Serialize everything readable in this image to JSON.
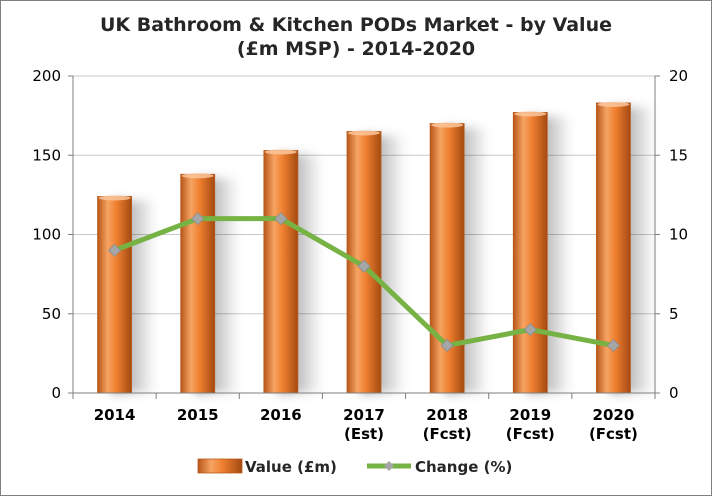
{
  "chart_data": {
    "type": "bar",
    "title_lines": [
      "UK Bathroom & Kitchen PODs Market - by Value",
      "(£m MSP) - 2014-2020"
    ],
    "categories": [
      [
        "2014"
      ],
      [
        "2015"
      ],
      [
        "2016"
      ],
      [
        "2017",
        "(Est)"
      ],
      [
        "2018",
        "(Fcst)"
      ],
      [
        "2019",
        "(Fcst)"
      ],
      [
        "2020",
        "(Fcst)"
      ]
    ],
    "series": [
      {
        "name": "Value (£m)",
        "type": "bar",
        "axis": "left",
        "color": "#F08030",
        "values": [
          124,
          138,
          153,
          165,
          170,
          177,
          183
        ]
      },
      {
        "name": "Change (%)",
        "type": "line",
        "axis": "right",
        "color": "#77B244",
        "marker_color": "#A6A6A6",
        "values": [
          9,
          11,
          11,
          8,
          3,
          4,
          3
        ]
      }
    ],
    "y_left": {
      "min": 0,
      "max": 200,
      "ticks": [
        "0",
        "50",
        "100",
        "150",
        "200"
      ]
    },
    "y_right": {
      "min": 0,
      "max": 20,
      "ticks": [
        "0",
        "5",
        "10",
        "15",
        "20"
      ]
    },
    "grid": true,
    "legend_position": "bottom"
  }
}
